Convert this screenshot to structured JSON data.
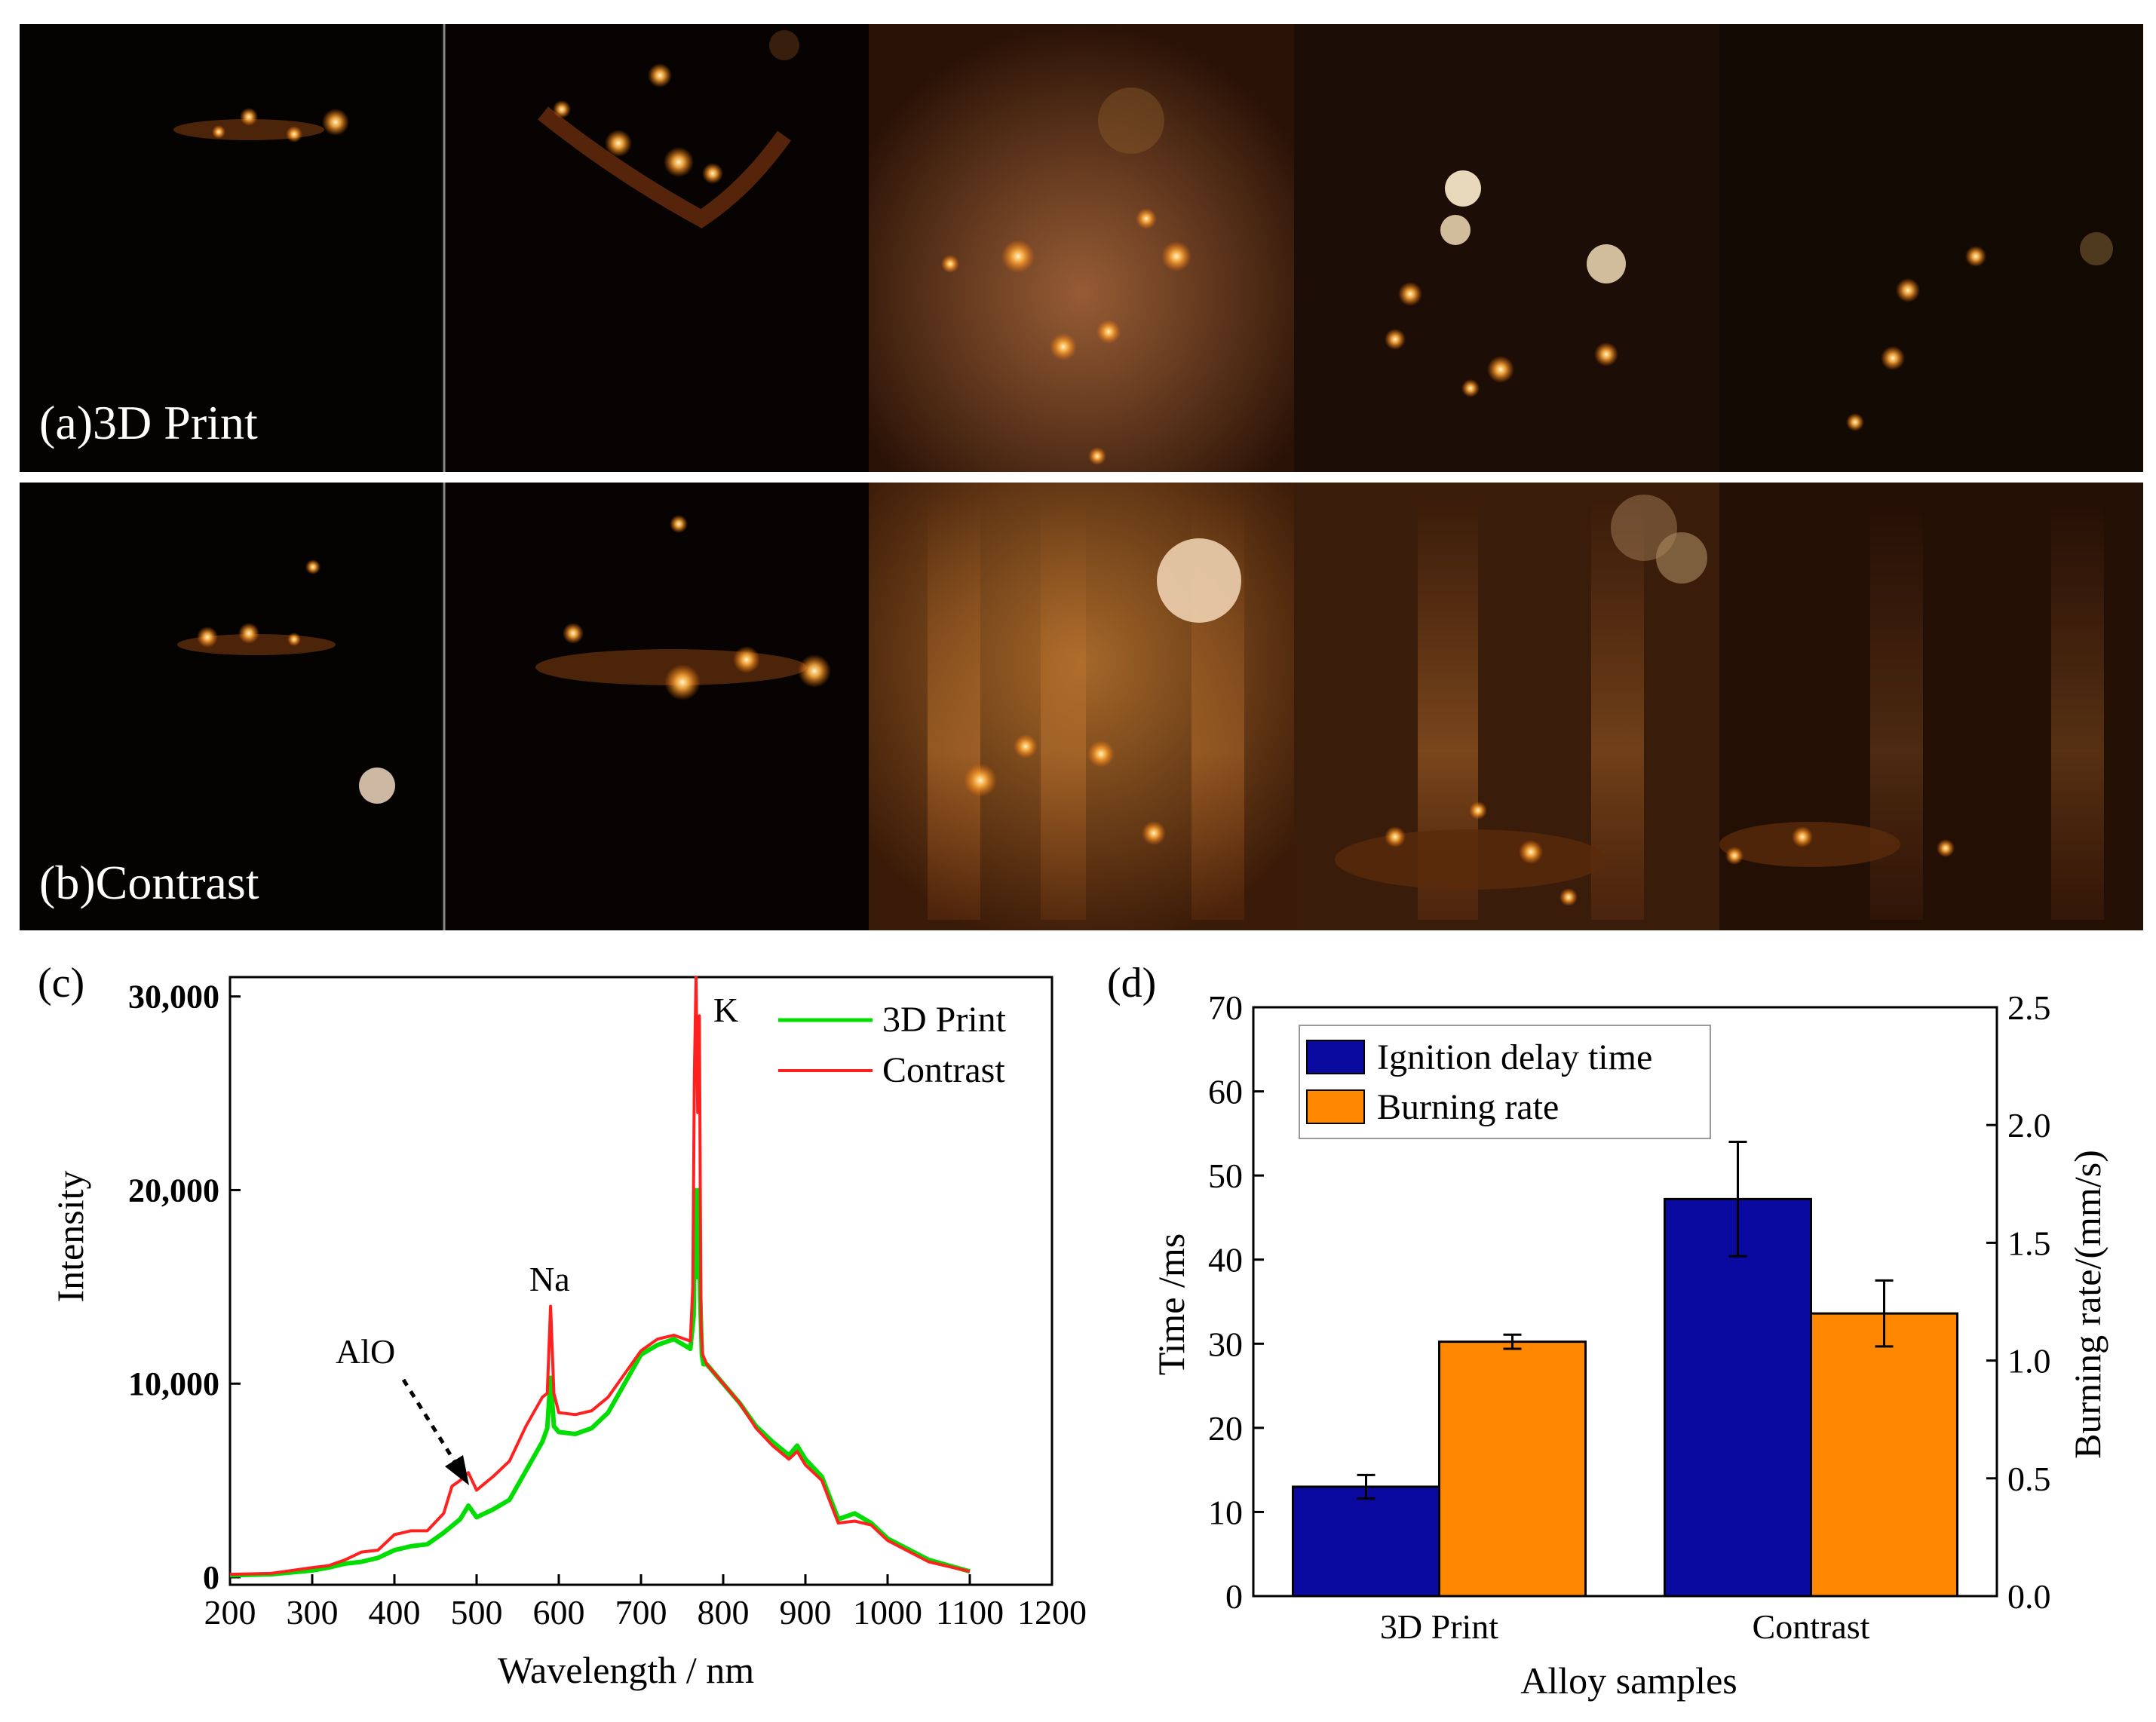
{
  "photos": {
    "row_a_label": "(a)3D Print",
    "row_b_label": "(b)Contrast"
  },
  "chart_data": [
    {
      "panel": "(c)",
      "type": "line",
      "xlabel": "Wavelength / nm",
      "ylabel": "Intensity",
      "xlim": [
        200,
        1200
      ],
      "ylim": [
        0,
        31000
      ],
      "x_ticks": [
        200,
        300,
        400,
        500,
        600,
        700,
        800,
        900,
        1000,
        1100,
        1200
      ],
      "x_tick_labels": [
        "200",
        "300",
        "400",
        "500",
        "600",
        "700",
        "800",
        "900",
        "1000",
        "1100",
        "1200"
      ],
      "y_ticks": [
        0,
        10000,
        20000,
        30000
      ],
      "y_tick_labels": [
        "0",
        "10,000",
        "20,000",
        "30,000"
      ],
      "legend_position": "top-right",
      "series": [
        {
          "name": "3D Print",
          "color": "#00dd00",
          "x": [
            200,
            250,
            300,
            320,
            340,
            360,
            380,
            400,
            420,
            440,
            460,
            480,
            490,
            500,
            520,
            540,
            560,
            580,
            586,
            590,
            594,
            600,
            620,
            640,
            660,
            680,
            700,
            720,
            740,
            760,
            764,
            766,
            768,
            770,
            772,
            774,
            776,
            780,
            800,
            820,
            840,
            860,
            880,
            890,
            900,
            920,
            940,
            960,
            980,
            1000,
            1050,
            1100
          ],
          "y": [
            100,
            150,
            350,
            500,
            700,
            800,
            1000,
            1400,
            1600,
            1700,
            2300,
            3000,
            3700,
            3100,
            3500,
            4000,
            5500,
            7000,
            7700,
            10300,
            7800,
            7500,
            7400,
            7700,
            8500,
            10000,
            11500,
            12000,
            12300,
            11800,
            13500,
            20000,
            15500,
            20000,
            14500,
            11500,
            11000,
            11000,
            10000,
            9000,
            7800,
            7000,
            6300,
            6800,
            6100,
            5200,
            3000,
            3300,
            2800,
            2000,
            900,
            300
          ]
        },
        {
          "name": "Contrast",
          "color": "#ff2020",
          "x": [
            200,
            250,
            300,
            320,
            340,
            360,
            380,
            400,
            420,
            440,
            460,
            470,
            480,
            490,
            500,
            520,
            540,
            560,
            580,
            586,
            590,
            594,
            600,
            620,
            640,
            660,
            680,
            700,
            720,
            740,
            760,
            763,
            765,
            767,
            769,
            771,
            773,
            775,
            780,
            800,
            820,
            840,
            860,
            880,
            890,
            900,
            920,
            940,
            960,
            980,
            1000,
            1050,
            1100
          ],
          "y": [
            150,
            200,
            500,
            600,
            900,
            1300,
            1400,
            2200,
            2400,
            2400,
            3300,
            4700,
            5000,
            5400,
            4500,
            5200,
            6000,
            7800,
            9300,
            9500,
            14000,
            9500,
            8500,
            8400,
            8600,
            9300,
            10500,
            11700,
            12300,
            12500,
            12200,
            15000,
            26000,
            31000,
            24000,
            29000,
            13000,
            11500,
            11000,
            10000,
            9000,
            7700,
            6800,
            6100,
            6500,
            5800,
            5000,
            2800,
            2900,
            2700,
            1900,
            800,
            300
          ]
        }
      ],
      "annotations": [
        {
          "text": "K",
          "x": 775,
          "y": 30000
        },
        {
          "text": "Na",
          "x": 590,
          "y": 15800
        },
        {
          "text": "AlO",
          "x": 485,
          "y": 5200
        }
      ]
    },
    {
      "panel": "(d)",
      "type": "bar",
      "xlabel": "Alloy samples",
      "ylabel_left": "Time /ms",
      "ylabel_right": "Burning rate/(mm/s)",
      "categories": [
        "3D Print",
        "Contrast"
      ],
      "ylim_left": [
        0,
        70
      ],
      "ylim_right": [
        0.0,
        2.5
      ],
      "y_ticks_left": [
        0,
        10,
        20,
        30,
        40,
        50,
        60,
        70
      ],
      "y_tick_labels_left": [
        "0",
        "10",
        "20",
        "30",
        "40",
        "50",
        "60",
        "70"
      ],
      "y_ticks_right": [
        0.0,
        0.5,
        1.0,
        1.5,
        2.0,
        2.5
      ],
      "y_tick_labels_right": [
        "0.0",
        "0.5",
        "1.0",
        "1.5",
        "2.0",
        "2.5"
      ],
      "legend_position": "top-left",
      "series": [
        {
          "name": "Ignition delay time",
          "axis": "left",
          "color": "#0a0aa0",
          "values": [
            13,
            47.2
          ],
          "errors": [
            1.4,
            6.8
          ]
        },
        {
          "name": "Burning rate",
          "axis": "right",
          "color": "#ff8800",
          "values": [
            1.08,
            1.2
          ],
          "errors": [
            0.03,
            0.14
          ]
        }
      ]
    }
  ]
}
